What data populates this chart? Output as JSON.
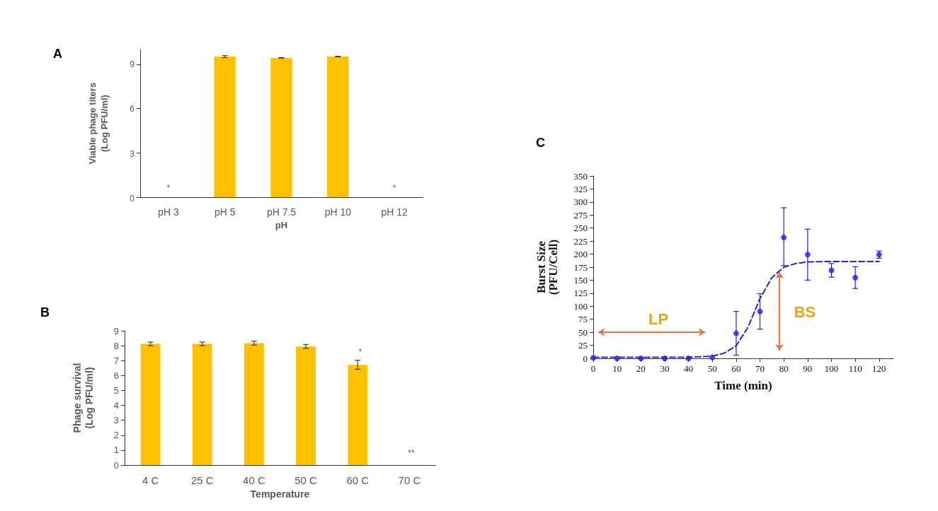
{
  "chart_data": [
    {
      "type": "bar",
      "title": "A",
      "xlabel": "pH",
      "ylabel": "Viable phage titers\n(Log PFU/ml)",
      "categories": [
        "pH 3",
        "pH 5",
        "pH 7.5",
        "pH 10",
        "pH 12"
      ],
      "values": [
        null,
        9.52,
        9.43,
        9.52,
        null
      ],
      "errors": [
        null,
        0.07,
        0.02,
        0.02,
        null
      ],
      "color": "#ffc000",
      "ylim": [
        0,
        10
      ],
      "yticks": [
        0,
        3,
        6,
        9
      ],
      "grid": false,
      "annotations": [
        "*",
        "*"
      ]
    },
    {
      "type": "bar",
      "title": "B",
      "xlabel": "Temperature",
      "ylabel": "Phage survival\n(Log PFU/ml)",
      "categories": [
        "4 C",
        "25 C",
        "40 C",
        "50 C",
        "60 C",
        "70 C"
      ],
      "values": [
        8.12,
        8.12,
        8.17,
        7.95,
        6.72,
        null
      ],
      "errors": [
        0.12,
        0.12,
        0.13,
        0.13,
        0.3,
        null
      ],
      "color": "#ffc000",
      "ylim": [
        0,
        9
      ],
      "yticks": [
        0,
        1,
        2,
        3,
        4,
        5,
        6,
        7,
        8,
        9
      ],
      "grid": false,
      "annotations": [
        "*",
        "**"
      ]
    },
    {
      "type": "scatter",
      "title": "C",
      "xlabel": "Time (min)",
      "ylabel": "Burst Size\n(PFU/Cell)",
      "series": [
        {
          "color": "#1f1fe6",
          "marker": "circle",
          "x": [
            0,
            10,
            20,
            30,
            40,
            50,
            60,
            70,
            80,
            90,
            100,
            110,
            120
          ],
          "values": [
            1,
            0,
            0,
            0,
            0,
            2,
            48,
            90,
            232,
            199,
            169,
            155,
            199
          ],
          "errors": [
            null,
            null,
            null,
            null,
            null,
            null,
            42,
            34,
            [
              178,
              289
            ],
            49,
            13,
            21,
            7
          ]
        },
        {
          "type": "line",
          "color": "#2626cc",
          "marker": "none",
          "line_style": "dashed",
          "x": [
            0,
            10,
            20,
            30,
            40,
            45,
            50,
            55,
            60,
            65,
            70,
            75,
            80,
            85,
            90,
            100,
            110,
            120
          ],
          "values": [
            2,
            2,
            2,
            2,
            2,
            3,
            4,
            10,
            24,
            60,
            115,
            155,
            175,
            182,
            185,
            186,
            186,
            186
          ]
        }
      ],
      "xlim": [
        0,
        126
      ],
      "xticks": [
        0,
        10,
        20,
        30,
        40,
        50,
        60,
        70,
        80,
        90,
        100,
        110,
        120
      ],
      "ylim": [
        0,
        350
      ],
      "yticks": [
        0,
        25,
        50,
        75,
        100,
        125,
        150,
        175,
        200,
        225,
        250,
        275,
        300,
        325,
        350
      ],
      "grid": false,
      "annotations": [
        "LP",
        "BS"
      ]
    }
  ]
}
